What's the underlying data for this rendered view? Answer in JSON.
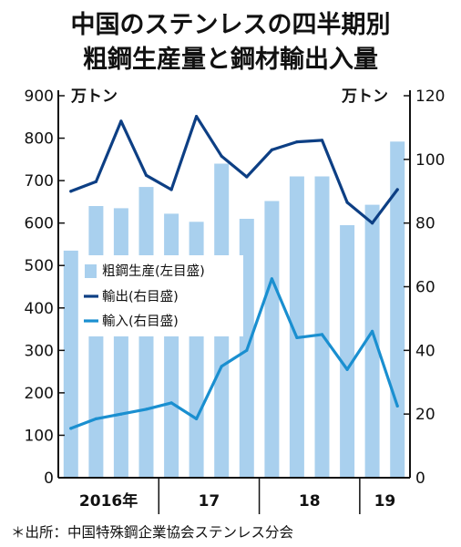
{
  "chart_data": {
    "type": "bar",
    "title_lines": [
      "中国のステンレスの四半期別",
      "粗鋼生産量と鋼材輸出入量"
    ],
    "left_axis": {
      "unit": "万トン",
      "min": 0,
      "max": 900,
      "ticks": [
        "0",
        "100",
        "200",
        "300",
        "400",
        "500",
        "600",
        "700",
        "800",
        "900"
      ]
    },
    "right_axis": {
      "unit": "万トン",
      "min": 0,
      "max": 120,
      "ticks": [
        "0",
        "20",
        "40",
        "60",
        "80",
        "100",
        "120"
      ]
    },
    "year_labels": [
      {
        "label": "2016年",
        "start": 0,
        "end": 4
      },
      {
        "label": "17",
        "start": 4,
        "end": 8
      },
      {
        "label": "18",
        "start": 8,
        "end": 12
      },
      {
        "label": "19",
        "start": 12,
        "end": 14
      }
    ],
    "series": [
      {
        "name": "粗鋼生産(左目盛)",
        "kind": "bar",
        "axis": "left",
        "color": "#a9d0ee",
        "values": [
          535,
          640,
          635,
          685,
          622,
          603,
          740,
          610,
          652,
          710,
          710,
          595,
          643,
          792
        ]
      },
      {
        "name": "輸出(右目盛)",
        "kind": "line",
        "axis": "right",
        "color": "#0d3f84",
        "values": [
          90,
          93,
          112,
          95,
          90.5,
          113.5,
          101,
          94.5,
          103,
          105.5,
          106,
          86.5,
          80,
          90.5
        ]
      },
      {
        "name": "輸入(右目盛)",
        "kind": "line",
        "axis": "right",
        "color": "#1a8fd0",
        "values": [
          15.5,
          18.5,
          20,
          21.5,
          23.5,
          18.5,
          35,
          40,
          62.5,
          44,
          45,
          34,
          46,
          22.5
        ]
      }
    ],
    "source": "＊出所：中国特殊鋼企業協会ステンレス分会"
  }
}
